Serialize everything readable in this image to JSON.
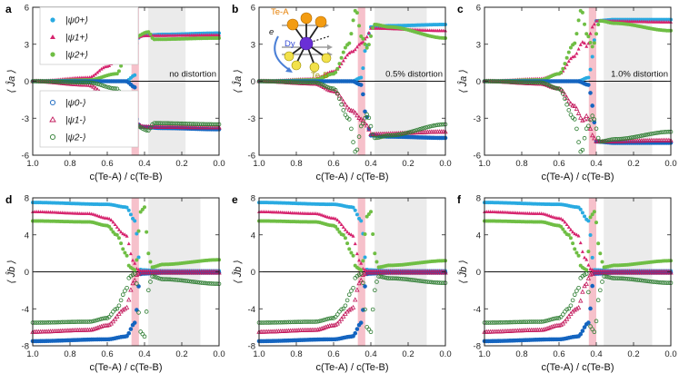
{
  "figure": {
    "panels": [
      {
        "letter": "a",
        "ylabel": "⟨ Ĵa ⟩",
        "annotation": "no distortion",
        "row": 0
      },
      {
        "letter": "b",
        "ylabel": "⟨ Ĵa ⟩",
        "annotation": "0.5% distortion",
        "row": 0
      },
      {
        "letter": "c",
        "ylabel": "⟨ Ĵa ⟩",
        "annotation": "1.0% distortion",
        "row": 0
      },
      {
        "letter": "d",
        "ylabel": "⟨ Ĵb ⟩",
        "annotation": "",
        "row": 1
      },
      {
        "letter": "e",
        "ylabel": "⟨ Ĵb ⟩",
        "annotation": "",
        "row": 1
      },
      {
        "letter": "f",
        "ylabel": "⟨ Ĵb ⟩",
        "annotation": "",
        "row": 1
      }
    ],
    "xlabel": "c(Te-A) / c(Te-B)",
    "legend": {
      "plus": [
        "|ψ0+⟩",
        "|ψ1+⟩",
        "|ψ2+⟩"
      ],
      "minus": [
        "|ψ0-⟩",
        "|ψ1-⟩",
        "|ψ2-⟩"
      ]
    },
    "inset": {
      "te_a": "Te-A",
      "te_b": "Te-B",
      "dy": "Dy",
      "e": "e"
    }
  },
  "colors": {
    "psi0": "#29aae1",
    "psi1": "#d6246e",
    "psi2p": "#6fbe44",
    "psi2m": "#2e7d32",
    "pink_band": "#f4b6c2",
    "gray_band": "#ebebeb"
  },
  "chart_data": [
    {
      "type": "scatter",
      "panel": "a",
      "xlabel": "c(Te-A) / c(Te-B)",
      "ylabel": "⟨Ja⟩",
      "xlim": [
        1.0,
        0.0
      ],
      "ylim": [
        -6,
        6
      ],
      "xticks": [
        1.0,
        0.8,
        0.6,
        0.4,
        0.2,
        0.0
      ],
      "yticks": [
        -6,
        -3,
        0,
        3,
        6
      ],
      "pink_band": [
        0.47,
        0.43
      ],
      "gray_band": [
        0.38,
        0.18
      ],
      "series": [
        {
          "name": "|ψ0+⟩",
          "x": [
            1.0,
            0.5,
            0.45,
            0.44,
            0.42,
            0.3,
            0.0
          ],
          "y": [
            0.0,
            0.0,
            0.5,
            3.4,
            3.7,
            3.8,
            3.9
          ]
        },
        {
          "name": "|ψ1+⟩",
          "x": [
            1.0,
            0.7,
            0.6,
            0.5,
            0.45,
            0.4,
            0.0
          ],
          "y": [
            0.0,
            0.3,
            1.2,
            3.0,
            3.5,
            3.7,
            3.75
          ]
        },
        {
          "name": "|ψ2+⟩",
          "x": [
            1.0,
            0.7,
            0.55,
            0.48,
            0.45,
            0.38,
            0.35,
            0.0
          ],
          "y": [
            0.0,
            0.1,
            0.6,
            3.0,
            3.6,
            4.0,
            3.4,
            3.5
          ]
        },
        {
          "name": "|ψ0-⟩",
          "x": [
            1.0,
            0.5,
            0.45,
            0.44,
            0.42,
            0.3,
            0.0
          ],
          "y": [
            0.0,
            0.0,
            -0.5,
            -3.4,
            -3.7,
            -3.8,
            -3.9
          ]
        },
        {
          "name": "|ψ1-⟩",
          "x": [
            1.0,
            0.7,
            0.6,
            0.5,
            0.45,
            0.4,
            0.0
          ],
          "y": [
            0.0,
            -0.3,
            -1.2,
            -3.0,
            -3.5,
            -3.7,
            -3.75
          ]
        },
        {
          "name": "|ψ2-⟩",
          "x": [
            1.0,
            0.7,
            0.55,
            0.48,
            0.45,
            0.38,
            0.35,
            0.0
          ],
          "y": [
            0.0,
            -0.1,
            -0.6,
            -3.0,
            -3.6,
            -4.0,
            -3.4,
            -3.5
          ]
        }
      ]
    },
    {
      "type": "scatter",
      "panel": "b",
      "xlabel": "c(Te-A) / c(Te-B)",
      "ylabel": "⟨Ja⟩",
      "xlim": [
        1.0,
        0.0
      ],
      "ylim": [
        -6,
        6
      ],
      "xticks": [
        1.0,
        0.8,
        0.6,
        0.4,
        0.2,
        0.0
      ],
      "yticks": [
        -6,
        -3,
        0,
        3,
        6
      ],
      "pink_band": [
        0.47,
        0.43
      ],
      "gray_band": [
        0.38,
        0.1
      ],
      "series": [
        {
          "name": "|ψ0+⟩",
          "x": [
            1.0,
            0.5,
            0.45,
            0.43,
            0.4,
            0.3,
            0.0
          ],
          "y": [
            0.0,
            0.0,
            0.3,
            2.5,
            4.4,
            4.5,
            4.6
          ]
        },
        {
          "name": "|ψ1+⟩",
          "x": [
            1.0,
            0.7,
            0.6,
            0.5,
            0.45,
            0.42,
            0.4,
            0.0
          ],
          "y": [
            0.0,
            0.2,
            0.8,
            2.4,
            3.1,
            3.6,
            4.3,
            4.1
          ]
        },
        {
          "name": "|ψ2+⟩",
          "x": [
            1.0,
            0.7,
            0.6,
            0.52,
            0.48,
            0.45,
            0.42,
            0.38,
            0.3,
            0.0
          ],
          "y": [
            0.0,
            0.1,
            0.6,
            3.0,
            5.8,
            3.6,
            2.7,
            4.6,
            4.4,
            3.5
          ]
        },
        {
          "name": "|ψ0-⟩",
          "x": [
            1.0,
            0.5,
            0.45,
            0.43,
            0.4,
            0.3,
            0.0
          ],
          "y": [
            0.0,
            0.0,
            -0.3,
            -2.5,
            -4.4,
            -4.5,
            -4.6
          ]
        },
        {
          "name": "|ψ1-⟩",
          "x": [
            1.0,
            0.7,
            0.6,
            0.5,
            0.45,
            0.42,
            0.4,
            0.0
          ],
          "y": [
            0.0,
            -0.2,
            -0.8,
            -2.4,
            -3.1,
            -3.6,
            -4.3,
            -4.1
          ]
        },
        {
          "name": "|ψ2-⟩",
          "x": [
            1.0,
            0.7,
            0.6,
            0.52,
            0.48,
            0.45,
            0.42,
            0.38,
            0.3,
            0.0
          ],
          "y": [
            0.0,
            -0.1,
            -0.6,
            -3.0,
            -5.8,
            -3.6,
            -2.7,
            -4.6,
            -4.4,
            -3.5
          ]
        }
      ]
    },
    {
      "type": "scatter",
      "panel": "c",
      "xlabel": "c(Te-A) / c(Te-B)",
      "ylabel": "⟨Ja⟩",
      "xlim": [
        1.0,
        0.0
      ],
      "ylim": [
        -6,
        6
      ],
      "xticks": [
        1.0,
        0.8,
        0.6,
        0.4,
        0.2,
        0.0
      ],
      "yticks": [
        -6,
        -3,
        0,
        3,
        6
      ],
      "pink_band": [
        0.44,
        0.4
      ],
      "gray_band": [
        0.36,
        0.1
      ],
      "series": [
        {
          "name": "|ψ0+⟩",
          "x": [
            1.0,
            0.5,
            0.44,
            0.42,
            0.4,
            0.3,
            0.0
          ],
          "y": [
            0.0,
            0.0,
            0.3,
            2.0,
            4.9,
            5.0,
            5.0
          ]
        },
        {
          "name": "|ψ1+⟩",
          "x": [
            1.0,
            0.7,
            0.6,
            0.52,
            0.47,
            0.45,
            0.42,
            0.4,
            0.0
          ],
          "y": [
            0.0,
            0.2,
            0.6,
            2.0,
            3.2,
            2.8,
            4.4,
            4.9,
            4.8
          ]
        },
        {
          "name": "|ψ2+⟩",
          "x": [
            1.0,
            0.7,
            0.6,
            0.52,
            0.48,
            0.45,
            0.42,
            0.38,
            0.3,
            0.0
          ],
          "y": [
            0.0,
            0.1,
            0.6,
            3.0,
            5.8,
            3.8,
            2.8,
            4.9,
            4.7,
            4.1
          ]
        },
        {
          "name": "|ψ0-⟩",
          "x": [
            1.0,
            0.5,
            0.44,
            0.42,
            0.4,
            0.3,
            0.0
          ],
          "y": [
            0.0,
            0.0,
            -0.3,
            -2.0,
            -4.9,
            -5.0,
            -5.0
          ]
        },
        {
          "name": "|ψ1-⟩",
          "x": [
            1.0,
            0.7,
            0.6,
            0.52,
            0.47,
            0.45,
            0.42,
            0.4,
            0.0
          ],
          "y": [
            0.0,
            -0.2,
            -0.6,
            -2.0,
            -3.2,
            -2.8,
            -4.4,
            -4.9,
            -4.8
          ]
        },
        {
          "name": "|ψ2-⟩",
          "x": [
            1.0,
            0.7,
            0.6,
            0.52,
            0.48,
            0.45,
            0.42,
            0.38,
            0.3,
            0.0
          ],
          "y": [
            0.0,
            -0.1,
            -0.6,
            -3.0,
            -5.8,
            -3.8,
            -2.8,
            -4.9,
            -4.7,
            -4.1
          ]
        }
      ]
    },
    {
      "type": "scatter",
      "panel": "d",
      "xlabel": "c(Te-A) / c(Te-B)",
      "ylabel": "⟨Jb⟩",
      "xlim": [
        1.0,
        0.0
      ],
      "ylim": [
        -8,
        8
      ],
      "xticks": [
        1.0,
        0.8,
        0.6,
        0.4,
        0.2,
        0.0
      ],
      "yticks": [
        -8,
        -4,
        0,
        4,
        8
      ],
      "pink_band": [
        0.47,
        0.43
      ],
      "gray_band": [
        0.38,
        0.1
      ],
      "series": [
        {
          "name": "|ψ0+⟩",
          "x": [
            1.0,
            0.6,
            0.5,
            0.45,
            0.43,
            0.42,
            0.3,
            0.0
          ],
          "y": [
            7.5,
            7.3,
            7.0,
            5.5,
            1.5,
            0.2,
            0.1,
            0.1
          ]
        },
        {
          "name": "|ψ1+⟩",
          "x": [
            1.0,
            0.7,
            0.6,
            0.5,
            0.46,
            0.44,
            0.42,
            0.3,
            0.0
          ],
          "y": [
            6.5,
            6.3,
            5.8,
            4.0,
            1.2,
            0.3,
            0.1,
            0.1,
            0.1
          ]
        },
        {
          "name": "|ψ2+⟩",
          "x": [
            1.0,
            0.7,
            0.6,
            0.55,
            0.5,
            0.48,
            0.45,
            0.42,
            0.4,
            0.38,
            0.36,
            0.3,
            0.0
          ],
          "y": [
            5.5,
            5.4,
            5.0,
            4.0,
            2.0,
            0.5,
            0.2,
            6.5,
            7.0,
            2.0,
            0.5,
            0.8,
            1.3
          ]
        },
        {
          "name": "|ψ0-⟩",
          "x": [
            1.0,
            0.6,
            0.5,
            0.45,
            0.43,
            0.42,
            0.3,
            0.0
          ],
          "y": [
            -7.5,
            -7.3,
            -7.0,
            -5.5,
            -1.5,
            -0.2,
            -0.1,
            -0.1
          ]
        },
        {
          "name": "|ψ1-⟩",
          "x": [
            1.0,
            0.7,
            0.6,
            0.5,
            0.46,
            0.44,
            0.42,
            0.3,
            0.0
          ],
          "y": [
            -6.5,
            -6.3,
            -5.8,
            -4.0,
            -1.2,
            -0.3,
            -0.1,
            -0.1,
            -0.1
          ]
        },
        {
          "name": "|ψ2-⟩",
          "x": [
            1.0,
            0.7,
            0.6,
            0.55,
            0.5,
            0.48,
            0.45,
            0.42,
            0.4,
            0.38,
            0.36,
            0.3,
            0.0
          ],
          "y": [
            -5.5,
            -5.4,
            -5.0,
            -4.0,
            -2.0,
            -0.5,
            -0.2,
            -6.5,
            -7.0,
            -2.0,
            -0.5,
            -0.8,
            -1.3
          ]
        }
      ]
    },
    {
      "type": "scatter",
      "panel": "e",
      "xlabel": "c(Te-A) / c(Te-B)",
      "ylabel": "⟨Jb⟩",
      "xlim": [
        1.0,
        0.0
      ],
      "ylim": [
        -8,
        8
      ],
      "xticks": [
        1.0,
        0.8,
        0.6,
        0.4,
        0.2,
        0.0
      ],
      "yticks": [
        -8,
        -4,
        0,
        4,
        8
      ],
      "pink_band": [
        0.47,
        0.43
      ],
      "gray_band": [
        0.38,
        0.1
      ],
      "series": [
        {
          "name": "|ψ0+⟩",
          "x": [
            1.0,
            0.6,
            0.5,
            0.45,
            0.43,
            0.42,
            0.3,
            0.0
          ],
          "y": [
            7.5,
            7.3,
            7.0,
            5.5,
            1.5,
            0.2,
            0.1,
            0.1
          ]
        },
        {
          "name": "|ψ1+⟩",
          "x": [
            1.0,
            0.7,
            0.6,
            0.5,
            0.46,
            0.44,
            0.42,
            0.3,
            0.0
          ],
          "y": [
            6.5,
            6.3,
            5.8,
            4.0,
            1.2,
            0.3,
            0.1,
            0.1,
            0.1
          ]
        },
        {
          "name": "|ψ2+⟩",
          "x": [
            1.0,
            0.7,
            0.6,
            0.55,
            0.5,
            0.48,
            0.45,
            0.42,
            0.4,
            0.38,
            0.36,
            0.3,
            0.0
          ],
          "y": [
            5.5,
            5.4,
            5.0,
            4.0,
            2.0,
            0.5,
            0.2,
            6.0,
            6.5,
            2.0,
            0.5,
            0.7,
            1.2
          ]
        },
        {
          "name": "|ψ0-⟩",
          "x": [
            1.0,
            0.6,
            0.5,
            0.45,
            0.43,
            0.42,
            0.3,
            0.0
          ],
          "y": [
            -7.5,
            -7.3,
            -7.0,
            -5.5,
            -1.5,
            -0.2,
            -0.1,
            -0.1
          ]
        },
        {
          "name": "|ψ1-⟩",
          "x": [
            1.0,
            0.7,
            0.6,
            0.5,
            0.46,
            0.44,
            0.42,
            0.3,
            0.0
          ],
          "y": [
            -6.5,
            -6.3,
            -5.8,
            -4.0,
            -1.2,
            -0.3,
            -0.1,
            -0.1,
            -0.1
          ]
        },
        {
          "name": "|ψ2-⟩",
          "x": [
            1.0,
            0.7,
            0.6,
            0.55,
            0.5,
            0.48,
            0.45,
            0.42,
            0.4,
            0.38,
            0.36,
            0.3,
            0.0
          ],
          "y": [
            -5.5,
            -5.4,
            -5.0,
            -4.0,
            -2.0,
            -0.5,
            -0.2,
            -6.0,
            -6.5,
            -2.0,
            -0.5,
            -0.7,
            -1.2
          ]
        }
      ]
    },
    {
      "type": "scatter",
      "panel": "f",
      "xlabel": "c(Te-A) / c(Te-B)",
      "ylabel": "⟨Jb⟩",
      "xlim": [
        1.0,
        0.0
      ],
      "ylim": [
        -8,
        8
      ],
      "xticks": [
        1.0,
        0.8,
        0.6,
        0.4,
        0.2,
        0.0
      ],
      "yticks": [
        -8,
        -4,
        0,
        4,
        8
      ],
      "pink_band": [
        0.44,
        0.4
      ],
      "gray_band": [
        0.36,
        0.1
      ],
      "series": [
        {
          "name": "|ψ0+⟩",
          "x": [
            1.0,
            0.6,
            0.5,
            0.44,
            0.42,
            0.41,
            0.3,
            0.0
          ],
          "y": [
            7.5,
            7.3,
            7.0,
            5.5,
            1.5,
            0.2,
            0.1,
            0.1
          ]
        },
        {
          "name": "|ψ1+⟩",
          "x": [
            1.0,
            0.7,
            0.6,
            0.5,
            0.46,
            0.43,
            0.41,
            0.3,
            0.0
          ],
          "y": [
            6.5,
            6.3,
            5.8,
            4.0,
            1.5,
            0.3,
            0.1,
            0.1,
            0.1
          ]
        },
        {
          "name": "|ψ2+⟩",
          "x": [
            1.0,
            0.7,
            0.6,
            0.55,
            0.5,
            0.48,
            0.45,
            0.43,
            0.41,
            0.38,
            0.36,
            0.3,
            0.0
          ],
          "y": [
            5.5,
            5.4,
            5.0,
            4.0,
            2.0,
            0.5,
            0.2,
            6.0,
            6.5,
            2.0,
            0.5,
            0.7,
            1.2
          ]
        },
        {
          "name": "|ψ0-⟩",
          "x": [
            1.0,
            0.6,
            0.5,
            0.44,
            0.42,
            0.41,
            0.3,
            0.0
          ],
          "y": [
            -7.5,
            -7.3,
            -7.0,
            -5.5,
            -1.5,
            -0.2,
            -0.1,
            -0.1
          ]
        },
        {
          "name": "|ψ1-⟩",
          "x": [
            1.0,
            0.7,
            0.6,
            0.5,
            0.46,
            0.43,
            0.41,
            0.3,
            0.0
          ],
          "y": [
            -6.5,
            -6.3,
            -5.8,
            -4.0,
            -1.5,
            -0.3,
            -0.1,
            -0.1,
            -0.1
          ]
        },
        {
          "name": "|ψ2-⟩",
          "x": [
            1.0,
            0.7,
            0.6,
            0.55,
            0.5,
            0.48,
            0.45,
            0.43,
            0.41,
            0.38,
            0.36,
            0.3,
            0.0
          ],
          "y": [
            -5.5,
            -5.4,
            -5.0,
            -4.0,
            -2.0,
            -0.5,
            -0.2,
            -6.0,
            -6.5,
            -2.0,
            -0.5,
            -0.7,
            -1.2
          ]
        }
      ]
    }
  ]
}
